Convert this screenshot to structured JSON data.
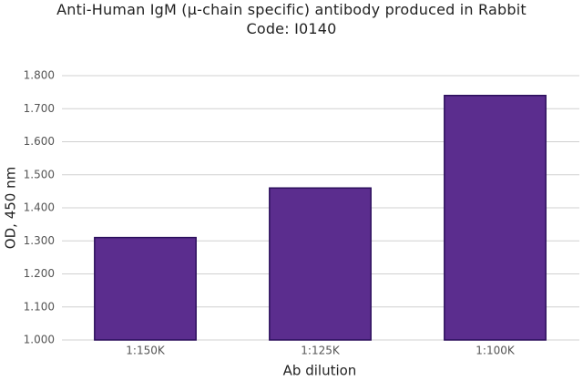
{
  "chart_data": {
    "type": "bar",
    "title": "Anti-Human IgM (μ-chain specific) antibody produced in Rabbit",
    "subtitle": "Code: I0140",
    "x_label": "Ab dilution",
    "y_label": "OD, 450 nm",
    "categories": [
      "1:150K",
      "1:125K",
      "1:100K"
    ],
    "values": [
      1.31,
      1.46,
      1.74
    ],
    "color": "#5b2d8e",
    "ylim": [
      1.0,
      1.8
    ],
    "yticks": [
      {
        "value": 1.0,
        "label": "1.000"
      },
      {
        "value": 1.1,
        "label": "1.100"
      },
      {
        "value": 1.2,
        "label": "1.200"
      },
      {
        "value": 1.3,
        "label": "1.300"
      },
      {
        "value": 1.4,
        "label": "1.400"
      },
      {
        "value": 1.5,
        "label": "1.500"
      },
      {
        "value": 1.6,
        "label": "1.600"
      },
      {
        "value": 1.7,
        "label": "1.700"
      },
      {
        "value": 1.8,
        "label": "1.800"
      }
    ],
    "grid": true
  }
}
